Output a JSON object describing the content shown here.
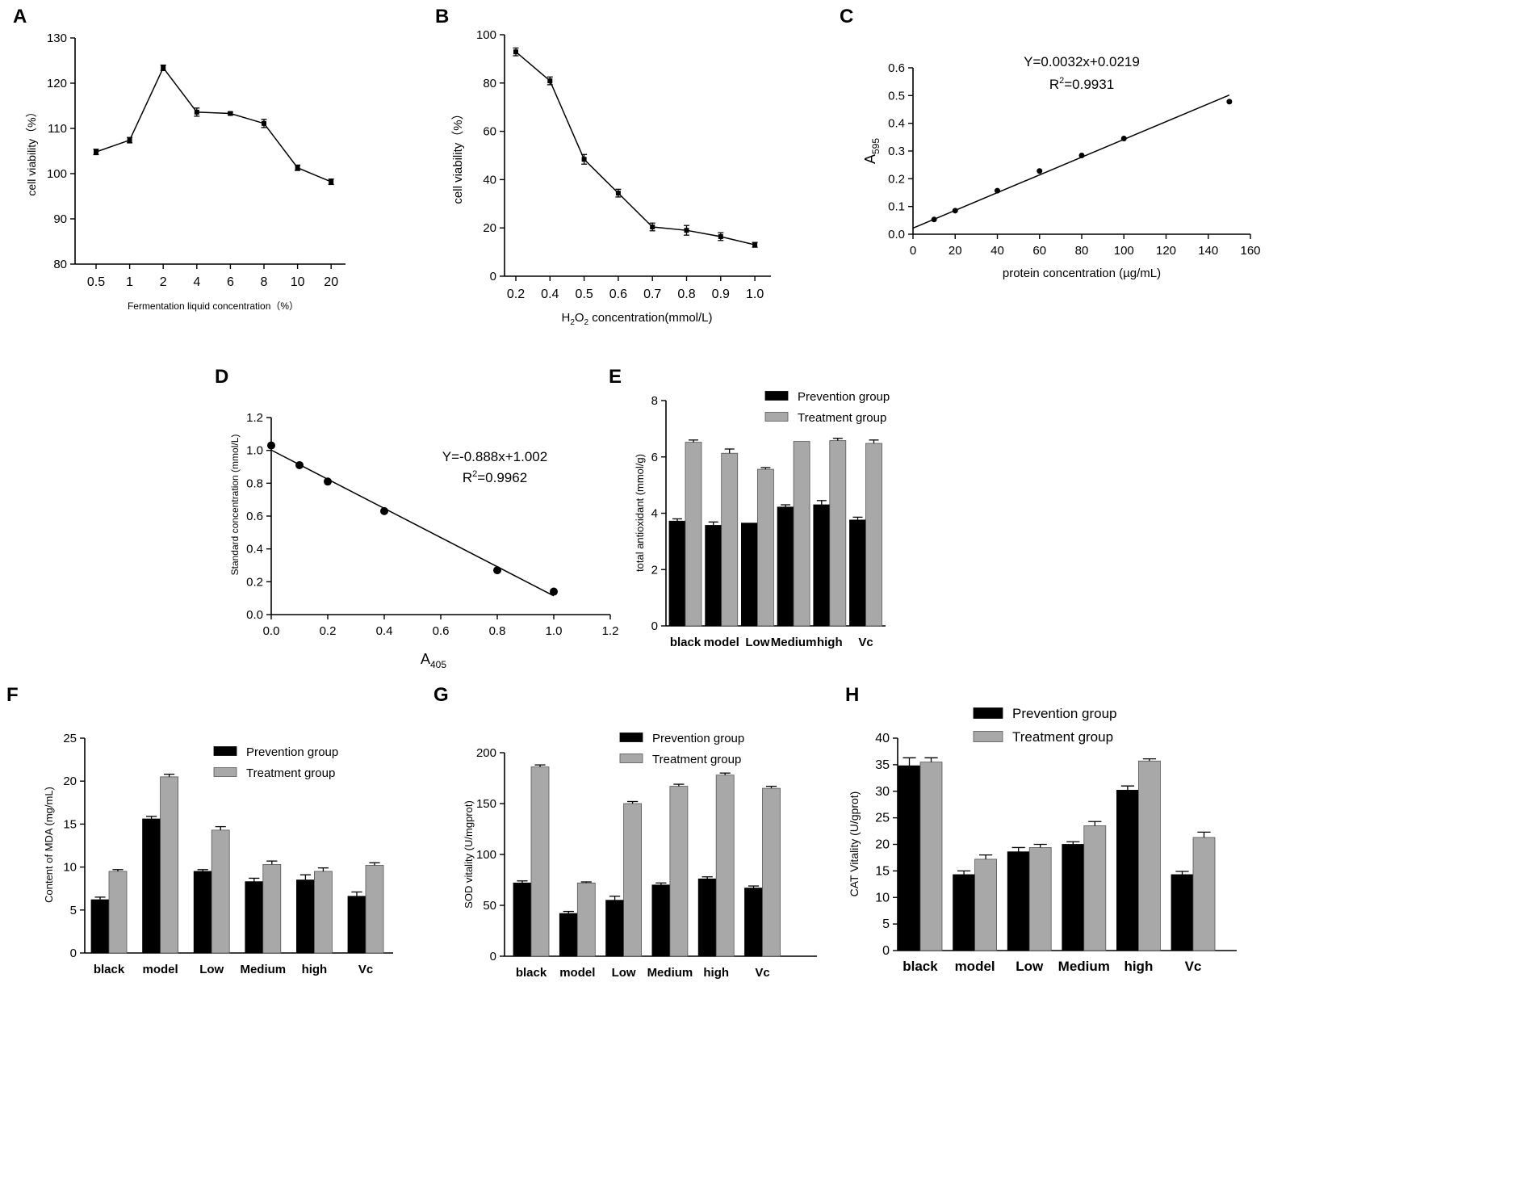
{
  "chart_data": [
    {
      "id": "A",
      "panel_label": "A",
      "type": "line",
      "title": "",
      "xlabel": "Fermentation liquid concentration（%）",
      "ylabel": "cell viability（%）",
      "categories": [
        "0.5",
        "1",
        "2",
        "4",
        "6",
        "8",
        "10",
        "20"
      ],
      "values": [
        104.8,
        107.4,
        123.4,
        113.6,
        113.3,
        111.1,
        101.3,
        98.2
      ],
      "errors": [
        0.6,
        0.6,
        0.6,
        0.9,
        0.3,
        0.9,
        0.6,
        0.6
      ],
      "ylim": [
        80,
        130
      ],
      "yticks": [
        "80",
        "90",
        "100",
        "110",
        "120",
        "130"
      ],
      "ytick_values": [
        80,
        90,
        100,
        110,
        120,
        130
      ]
    },
    {
      "id": "B",
      "panel_label": "B",
      "type": "line",
      "title": "",
      "xlabel_parts": [
        "H",
        "2",
        "O",
        "2",
        " concentration(mmol/L)"
      ],
      "ylabel": "cell viability（%）",
      "categories": [
        "0.2",
        "0.4",
        "0.5",
        "0.6",
        "0.7",
        "0.8",
        "0.9",
        "1.0"
      ],
      "values": [
        92.9,
        80.9,
        48.4,
        34.4,
        20.4,
        19.0,
        16.4,
        13.0
      ],
      "errors": [
        1.6,
        1.6,
        2.0,
        1.6,
        1.6,
        2.0,
        1.6,
        1.0
      ],
      "ylim": [
        0,
        100
      ],
      "yticks": [
        "0",
        "20",
        "40",
        "60",
        "80",
        "100"
      ],
      "ytick_values": [
        0,
        20,
        40,
        60,
        80,
        100
      ]
    },
    {
      "id": "C",
      "panel_label": "C",
      "type": "scatter",
      "title": "",
      "xlabel": "protein concentration (µg/mL)",
      "ylabel_main": "A",
      "ylabel_sub": "595",
      "x": [
        10,
        20,
        40,
        60,
        80,
        100,
        150
      ],
      "y": [
        0.053,
        0.085,
        0.157,
        0.228,
        0.284,
        0.345,
        0.478
      ],
      "fit": {
        "slope": 0.0032,
        "intercept": 0.0219,
        "x_range": [
          0,
          150
        ]
      },
      "equation": "Y=0.0032x+0.0219",
      "r2_prefix": "R",
      "r2_sup": "2",
      "r2_value": "=0.9931",
      "xlim": [
        0,
        160
      ],
      "ylim": [
        0,
        0.6
      ],
      "xticks": [
        "0",
        "20",
        "40",
        "60",
        "80",
        "100",
        "120",
        "140",
        "160"
      ],
      "xtick_values": [
        0,
        20,
        40,
        60,
        80,
        100,
        120,
        140,
        160
      ],
      "yticks": [
        "0.0",
        "0.1",
        "0.2",
        "0.3",
        "0.4",
        "0.5",
        "0.6"
      ],
      "ytick_values": [
        0,
        0.1,
        0.2,
        0.3,
        0.4,
        0.5,
        0.6
      ]
    },
    {
      "id": "D",
      "panel_label": "D",
      "type": "scatter",
      "title": "",
      "xlabel_main": "A",
      "xlabel_sub": "405",
      "ylabel": "Standard concentration (mmol/L)",
      "x": [
        0.0,
        0.1,
        0.2,
        0.4,
        0.8,
        1.0
      ],
      "y": [
        1.03,
        0.91,
        0.81,
        0.63,
        0.27,
        0.14
      ],
      "fit": {
        "slope": -0.888,
        "intercept": 1.002,
        "x_range": [
          0,
          1.0
        ]
      },
      "equation": "Y=-0.888x+1.002",
      "r2_prefix": "R",
      "r2_sup": "2",
      "r2_value": "=0.9962",
      "xlim": [
        0,
        1.2
      ],
      "ylim": [
        0,
        1.2
      ],
      "xticks": [
        "0.0",
        "0.2",
        "0.4",
        "0.6",
        "0.8",
        "1.0",
        "1.2"
      ],
      "xtick_values": [
        0,
        0.2,
        0.4,
        0.6,
        0.8,
        1.0,
        1.2
      ],
      "yticks": [
        "0.0",
        "0.2",
        "0.4",
        "0.6",
        "0.8",
        "1.0",
        "1.2"
      ],
      "ytick_values": [
        0,
        0.2,
        0.4,
        0.6,
        0.8,
        1.0,
        1.2
      ]
    },
    {
      "id": "E",
      "panel_label": "E",
      "type": "bar",
      "title": "",
      "xlabel": "",
      "ylabel": "total antioxidant (mmol/g)",
      "categories": [
        "black",
        "model",
        "Low",
        "Medium",
        "high",
        "Vc"
      ],
      "series": [
        {
          "name": "Prevention group",
          "values": [
            3.72,
            3.57,
            3.65,
            4.22,
            4.3,
            3.76
          ],
          "errors": [
            0.08,
            0.12,
            0.0,
            0.08,
            0.15,
            0.1
          ]
        },
        {
          "name": "Treatment group",
          "values": [
            6.52,
            6.13,
            5.56,
            6.55,
            6.58,
            6.48
          ],
          "errors": [
            0.08,
            0.15,
            0.06,
            0.0,
            0.08,
            0.12
          ]
        }
      ],
      "ylim": [
        0,
        8
      ],
      "yticks": [
        "0",
        "2",
        "4",
        "6",
        "8"
      ],
      "ytick_values": [
        0,
        2,
        4,
        6,
        8
      ],
      "legend_position": "top-center"
    },
    {
      "id": "F",
      "panel_label": "F",
      "type": "bar",
      "title": "",
      "xlabel": "",
      "ylabel": "Content of MDA (mg/mL)",
      "categories": [
        "black",
        "model",
        "Low",
        "Medium",
        "high",
        "Vc"
      ],
      "series": [
        {
          "name": "Prevention group",
          "values": [
            6.2,
            15.6,
            9.5,
            8.3,
            8.5,
            6.6
          ],
          "errors": [
            0.3,
            0.3,
            0.2,
            0.4,
            0.6,
            0.5
          ]
        },
        {
          "name": "Treatment group",
          "values": [
            9.5,
            20.5,
            14.3,
            10.3,
            9.5,
            10.2
          ],
          "errors": [
            0.2,
            0.3,
            0.4,
            0.4,
            0.4,
            0.3
          ]
        }
      ],
      "ylim": [
        0,
        25
      ],
      "yticks": [
        "0",
        "5",
        "10",
        "15",
        "20",
        "25"
      ],
      "ytick_values": [
        0,
        5,
        10,
        15,
        20,
        25
      ],
      "legend_position": "top-right"
    },
    {
      "id": "G",
      "panel_label": "G",
      "type": "bar",
      "title": "",
      "xlabel": "",
      "ylabel": "SOD vitality (U/mgprot)",
      "categories": [
        "black",
        "model",
        "Low",
        "Medium",
        "high",
        "Vc"
      ],
      "series": [
        {
          "name": "Prevention group",
          "values": [
            72,
            42,
            55,
            70,
            76,
            67
          ],
          "errors": [
            2,
            2,
            4,
            2,
            2,
            2
          ]
        },
        {
          "name": "Treatment group",
          "values": [
            186,
            72,
            150,
            167,
            178,
            165
          ],
          "errors": [
            2,
            1,
            2,
            2,
            2,
            2
          ]
        }
      ],
      "ylim": [
        0,
        200
      ],
      "yticks": [
        "0",
        "50",
        "100",
        "150",
        "200"
      ],
      "ytick_values": [
        0,
        50,
        100,
        150,
        200
      ],
      "legend_position": "top-right"
    },
    {
      "id": "H",
      "panel_label": "H",
      "type": "bar",
      "title": "",
      "xlabel": "",
      "ylabel": "CAT Vitality (U/gprot)",
      "categories": [
        "black",
        "model",
        "Low",
        "Medium",
        "high",
        "Vc"
      ],
      "series": [
        {
          "name": "Prevention group",
          "values": [
            34.8,
            14.3,
            18.6,
            20.0,
            30.2,
            14.3
          ],
          "errors": [
            1.5,
            0.7,
            0.8,
            0.5,
            0.8,
            0.6
          ]
        },
        {
          "name": "Treatment group",
          "values": [
            35.5,
            17.2,
            19.4,
            23.5,
            35.7,
            21.3
          ],
          "errors": [
            0.8,
            0.8,
            0.6,
            0.8,
            0.4,
            1.0
          ]
        }
      ],
      "ylim": [
        0,
        40
      ],
      "yticks": [
        "0",
        "5",
        "10",
        "15",
        "20",
        "25",
        "30",
        "35",
        "40"
      ],
      "ytick_values": [
        0,
        5,
        10,
        15,
        20,
        25,
        30,
        35,
        40
      ],
      "legend_position": "top-center"
    }
  ],
  "colors": {
    "prevention": "#000000",
    "treatment": "#a8a8a8",
    "axis": "#000000"
  }
}
